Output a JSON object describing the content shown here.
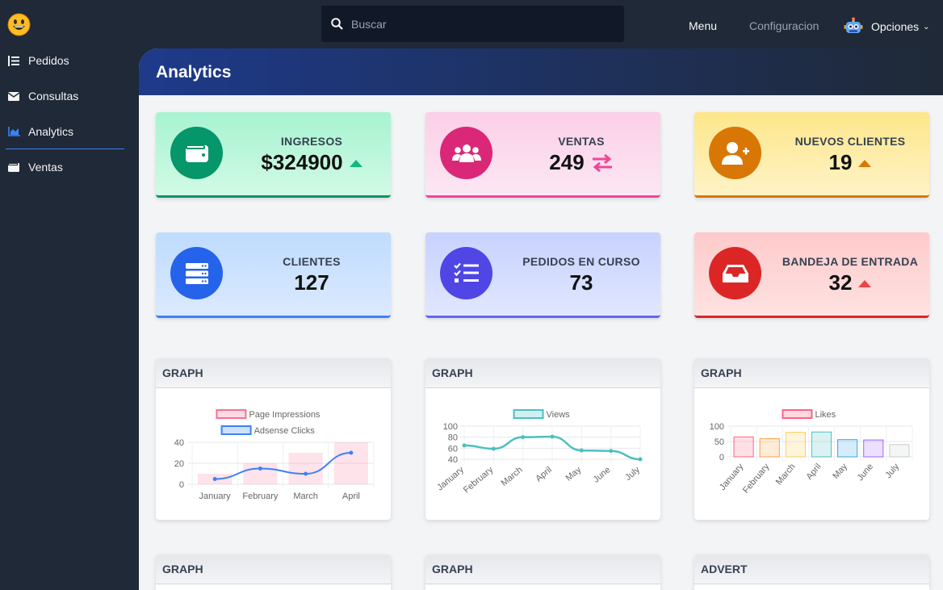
{
  "sidebar": {
    "logo_icon": "smiley-face-icon",
    "items": [
      {
        "label": "Pedidos",
        "icon": "list-icon"
      },
      {
        "label": "Consultas",
        "icon": "envelope-icon"
      },
      {
        "label": "Analytics",
        "icon": "chart-area-icon"
      },
      {
        "label": "Ventas",
        "icon": "wallet-icon"
      }
    ],
    "active": "Analytics",
    "accent": "#3b82f6"
  },
  "topbar": {
    "search_placeholder": "Buscar",
    "menu_label": "Menu",
    "config_label": "Configuracion",
    "options_label": "Opciones"
  },
  "page": {
    "title": "Analytics"
  },
  "stats": [
    {
      "title": "INGRESOS",
      "value": "$324900",
      "trend": "up",
      "icon": "wallet-icon",
      "color": "#059669"
    },
    {
      "title": "VENTAS",
      "value": "249",
      "trend": "exchange",
      "icon": "users-icon",
      "color": "#db2777"
    },
    {
      "title": "NUEVOS CLIENTES",
      "value": "19",
      "trend": "up",
      "icon": "user-plus-icon",
      "color": "#d97706"
    },
    {
      "title": "CLIENTES",
      "value": "127",
      "trend": "none",
      "icon": "server-icon",
      "color": "#2563eb"
    },
    {
      "title": "PEDIDOS EN CURSO",
      "value": "73",
      "trend": "none",
      "icon": "tasks-icon",
      "color": "#4f46e5"
    },
    {
      "title": "BANDEJA DE ENTRADA",
      "value": "32",
      "trend": "up",
      "icon": "inbox-icon",
      "color": "#dc2626"
    }
  ],
  "graph_cards": [
    {
      "title": "GRAPH"
    },
    {
      "title": "GRAPH"
    },
    {
      "title": "GRAPH"
    },
    {
      "title": "GRAPH"
    },
    {
      "title": "GRAPH"
    },
    {
      "title": "ADVERT"
    }
  ],
  "chart_data": [
    {
      "type": "bar",
      "categories": [
        "January",
        "February",
        "March",
        "April"
      ],
      "series": [
        {
          "name": "Page Impressions",
          "type": "bar",
          "values": [
            10,
            20,
            30,
            40
          ],
          "color": "#f87194"
        },
        {
          "name": "Adsense Clicks",
          "type": "line",
          "values": [
            5,
            15,
            10,
            30
          ],
          "color": "#3b82f6"
        }
      ],
      "ylim": [
        0,
        40
      ],
      "yticks": [
        0,
        20,
        40
      ],
      "legend": "top"
    },
    {
      "type": "line",
      "categories": [
        "January",
        "February",
        "March",
        "April",
        "May",
        "June",
        "July"
      ],
      "series": [
        {
          "name": "Views",
          "values": [
            65,
            59,
            80,
            81,
            56,
            55,
            40
          ],
          "color": "#4bc0c0"
        }
      ],
      "ylim": [
        40,
        100
      ],
      "yticks": [
        40,
        60,
        80,
        100
      ],
      "legend": "top"
    },
    {
      "type": "bar",
      "categories": [
        "January",
        "February",
        "March",
        "April",
        "May",
        "June",
        "July"
      ],
      "series": [
        {
          "name": "Likes",
          "values": [
            65,
            59,
            80,
            81,
            56,
            55,
            40
          ]
        }
      ],
      "colors": [
        "#ff6384",
        "#ff9f40",
        "#ffcd56",
        "#4bc0c0",
        "#36a2eb",
        "#9966ff",
        "#c9cbcf"
      ],
      "ylim": [
        0,
        100
      ],
      "yticks": [
        0,
        50,
        100
      ],
      "legend": "top"
    }
  ]
}
